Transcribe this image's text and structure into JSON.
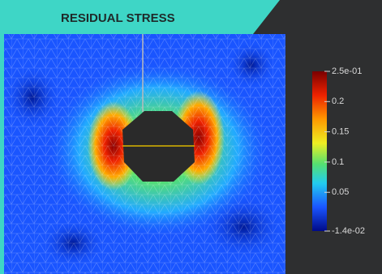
{
  "header": {
    "title": "RESIDUAL STRESS"
  },
  "colorbar": {
    "lim": [
      -0.014,
      0.25
    ],
    "ticks": [
      {
        "value": 0.25,
        "label": "2.5e-01"
      },
      0.2,
      0.15,
      0.1,
      0.05,
      {
        "value": -0.014,
        "label": "-1.4e-02"
      }
    ]
  }
}
